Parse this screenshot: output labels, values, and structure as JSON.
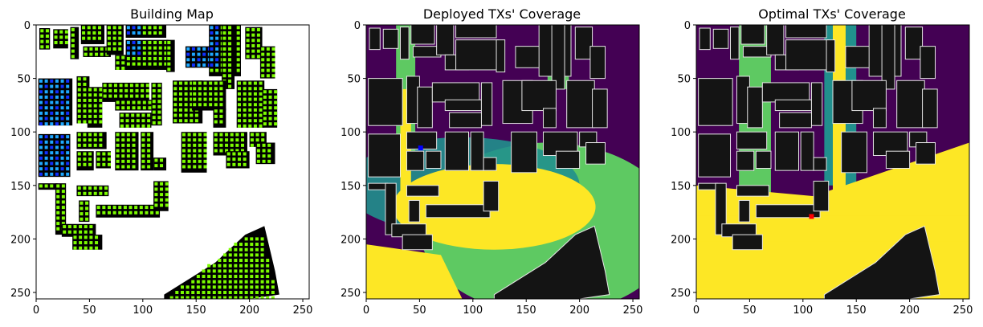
{
  "chart_data": [
    {
      "type": "heatmap",
      "title": "Building Map",
      "xlim": [
        0,
        256
      ],
      "ylim": [
        256,
        0
      ],
      "x_ticks": [
        0,
        50,
        100,
        150,
        200,
        250
      ],
      "y_ticks": [
        0,
        50,
        100,
        150,
        200,
        250
      ],
      "palette": {
        "background": "#ffffff",
        "building": "#000000",
        "marker_green": "#7cfc00",
        "marker_cyan": "#1ea7ff",
        "marker_blue": "#1030ff"
      },
      "buildings": [
        {
          "x": 3,
          "y": 3,
          "w": 10,
          "h": 20
        },
        {
          "x": 16,
          "y": 4,
          "w": 14,
          "h": 18
        },
        {
          "x": 32,
          "y": 2,
          "w": 8,
          "h": 30
        },
        {
          "x": 42,
          "y": 0,
          "w": 22,
          "h": 18
        },
        {
          "x": 44,
          "y": 20,
          "w": 26,
          "h": 10
        },
        {
          "x": 66,
          "y": 0,
          "w": 16,
          "h": 28
        },
        {
          "x": 74,
          "y": 28,
          "w": 22,
          "h": 14
        },
        {
          "x": 84,
          "y": 0,
          "w": 38,
          "h": 12
        },
        {
          "x": 84,
          "y": 14,
          "w": 40,
          "h": 28
        },
        {
          "x": 122,
          "y": 14,
          "w": 8,
          "h": 30
        },
        {
          "x": 140,
          "y": 20,
          "w": 30,
          "h": 20
        },
        {
          "x": 162,
          "y": 0,
          "w": 30,
          "h": 48
        },
        {
          "x": 174,
          "y": 0,
          "w": 12,
          "h": 60
        },
        {
          "x": 196,
          "y": 2,
          "w": 16,
          "h": 30
        },
        {
          "x": 210,
          "y": 20,
          "w": 14,
          "h": 30
        },
        {
          "x": 2,
          "y": 50,
          "w": 32,
          "h": 44
        },
        {
          "x": 38,
          "y": 48,
          "w": 12,
          "h": 44
        },
        {
          "x": 48,
          "y": 58,
          "w": 14,
          "h": 38
        },
        {
          "x": 62,
          "y": 54,
          "w": 44,
          "h": 18
        },
        {
          "x": 74,
          "y": 70,
          "w": 34,
          "h": 10
        },
        {
          "x": 108,
          "y": 54,
          "w": 10,
          "h": 40
        },
        {
          "x": 78,
          "y": 82,
          "w": 30,
          "h": 14
        },
        {
          "x": 128,
          "y": 52,
          "w": 28,
          "h": 40
        },
        {
          "x": 146,
          "y": 52,
          "w": 32,
          "h": 28
        },
        {
          "x": 166,
          "y": 78,
          "w": 12,
          "h": 18
        },
        {
          "x": 188,
          "y": 52,
          "w": 26,
          "h": 44
        },
        {
          "x": 212,
          "y": 60,
          "w": 14,
          "h": 36
        },
        {
          "x": 2,
          "y": 102,
          "w": 30,
          "h": 40
        },
        {
          "x": 38,
          "y": 100,
          "w": 28,
          "h": 16
        },
        {
          "x": 38,
          "y": 118,
          "w": 16,
          "h": 18
        },
        {
          "x": 56,
          "y": 118,
          "w": 14,
          "h": 16
        },
        {
          "x": 74,
          "y": 100,
          "w": 22,
          "h": 36
        },
        {
          "x": 98,
          "y": 100,
          "w": 12,
          "h": 36
        },
        {
          "x": 110,
          "y": 124,
          "w": 12,
          "h": 12
        },
        {
          "x": 136,
          "y": 100,
          "w": 24,
          "h": 38
        },
        {
          "x": 166,
          "y": 100,
          "w": 32,
          "h": 22
        },
        {
          "x": 178,
          "y": 118,
          "w": 22,
          "h": 16
        },
        {
          "x": 200,
          "y": 100,
          "w": 16,
          "h": 14
        },
        {
          "x": 206,
          "y": 110,
          "w": 18,
          "h": 20
        },
        {
          "x": 2,
          "y": 148,
          "w": 18,
          "h": 6
        },
        {
          "x": 18,
          "y": 148,
          "w": 10,
          "h": 48
        },
        {
          "x": 24,
          "y": 186,
          "w": 32,
          "h": 12
        },
        {
          "x": 34,
          "y": 196,
          "w": 28,
          "h": 14
        },
        {
          "x": 38,
          "y": 150,
          "w": 30,
          "h": 10
        },
        {
          "x": 56,
          "y": 168,
          "w": 60,
          "h": 12
        },
        {
          "x": 110,
          "y": 146,
          "w": 14,
          "h": 28
        },
        {
          "x": 40,
          "y": 164,
          "w": 10,
          "h": 20
        }
      ],
      "diagonal_block": [
        [
          120,
          252
        ],
        [
          168,
          222
        ],
        [
          196,
          196
        ],
        [
          214,
          188
        ],
        [
          224,
          230
        ],
        [
          228,
          252
        ],
        [
          200,
          256
        ],
        [
          120,
          256
        ]
      ]
    },
    {
      "type": "heatmap",
      "title": "Deployed TXs' Coverage",
      "xlim": [
        0,
        256
      ],
      "ylim": [
        256,
        0
      ],
      "x_ticks": [
        0,
        50,
        100,
        150,
        200,
        250
      ],
      "y_ticks": [
        0,
        50,
        100,
        150,
        200,
        250
      ],
      "colormap": "viridis",
      "palette": {
        "low": "#440154",
        "teal": "#21908d",
        "green": "#5ec962",
        "yellow": "#fde725",
        "building": "#141414",
        "outline": "#e6e6e6",
        "tx_marker": "#0000ff"
      },
      "tx_locations": [
        {
          "x": 51,
          "y": 115
        }
      ]
    },
    {
      "type": "heatmap",
      "title": "Optimal TXs' Coverage",
      "xlim": [
        0,
        256
      ],
      "ylim": [
        256,
        0
      ],
      "x_ticks": [
        0,
        50,
        100,
        150,
        200,
        250
      ],
      "y_ticks": [
        0,
        50,
        100,
        150,
        200,
        250
      ],
      "colormap": "viridis",
      "palette": {
        "low": "#440154",
        "teal": "#21908d",
        "green": "#5ec962",
        "yellow": "#fde725",
        "building": "#141414",
        "outline": "#e6e6e6",
        "tx_marker": "#ff0000"
      },
      "tx_locations": [
        {
          "x": 108,
          "y": 179
        }
      ]
    }
  ]
}
